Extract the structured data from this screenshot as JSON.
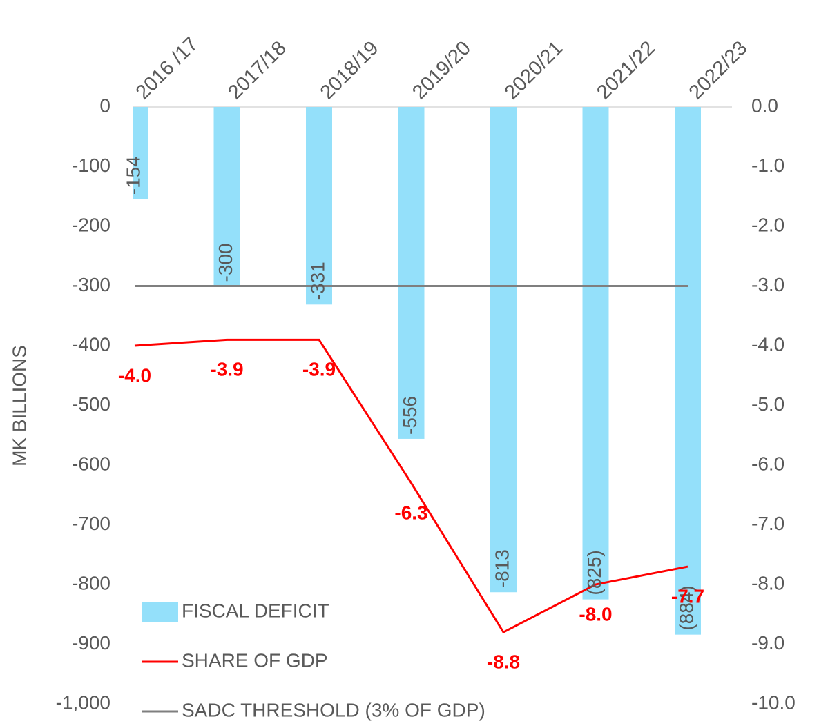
{
  "chart_data": {
    "type": "bar",
    "y_axis_label": "MK BILLIONS",
    "categories": [
      "2016 /17",
      "2017/18",
      "2018/19",
      "2019/20",
      "2020/21",
      "2021/22",
      "2022/23"
    ],
    "series": [
      {
        "name": "FISCAL DEFICIT",
        "type": "bar",
        "color": "#94e0fa",
        "values": [
          -154,
          -300,
          -331,
          -556,
          -813,
          -825,
          -884
        ],
        "value_labels": [
          "-154",
          "-300",
          "-331",
          "-556",
          "-813",
          "(825)",
          "(884)"
        ]
      },
      {
        "name": "SHARE OF GDP",
        "type": "line",
        "axis": "y2",
        "color": "#ff0000",
        "values": [
          -4.0,
          -3.9,
          -3.9,
          -6.3,
          -8.8,
          -8.0,
          -7.7
        ],
        "value_labels": [
          "-4.0",
          "-3.9",
          "-3.9",
          "-6.3",
          "-8.8",
          "-8.0",
          "-7.7"
        ]
      },
      {
        "name": "SADC THRESHOLD (3% OF GDP)",
        "type": "line",
        "axis": "y2",
        "color": "#7f7f7f",
        "values": [
          -3,
          -3,
          -3,
          -3,
          -3,
          -3,
          -3
        ]
      }
    ],
    "ylim": [
      -1000,
      0
    ],
    "yticks": [
      0,
      -100,
      -200,
      -300,
      -400,
      -500,
      -600,
      -700,
      -800,
      -900,
      {
        "value": -1000,
        "label": "-1,000"
      }
    ],
    "y2lim": [
      -10,
      0
    ],
    "y2ticks": [
      {
        "value": 0,
        "label": "0.0"
      },
      {
        "value": -1,
        "label": "-1.0"
      },
      {
        "value": -2,
        "label": "-2.0"
      },
      {
        "value": -3,
        "label": "-3.0"
      },
      {
        "value": -4,
        "label": "-4.0"
      },
      {
        "value": -5,
        "label": "-5.0"
      },
      {
        "value": -6,
        "label": "-6.0"
      },
      {
        "value": -7,
        "label": "-7.0"
      },
      {
        "value": -8,
        "label": "-8.0"
      },
      {
        "value": -9,
        "label": "-9.0"
      },
      {
        "value": -10,
        "label": "-10.0"
      }
    ],
    "legend": "bottom-left"
  }
}
